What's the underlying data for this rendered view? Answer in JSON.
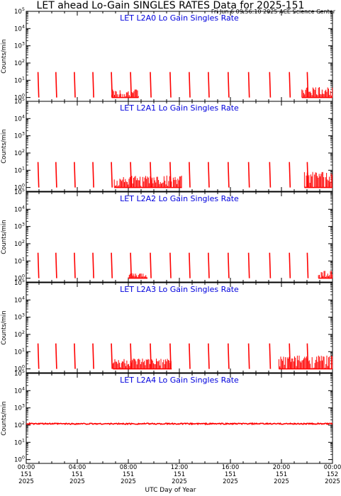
{
  "header": {
    "title": "LET ahead Lo-Gain SINGLES RATES Data for 2025-151",
    "timestamp": "Fri Jun  6 09:56:10 2025 ACE Science Center"
  },
  "colors": {
    "data": "#ff0000",
    "panel_title": "#0000dd",
    "axes": "#000000"
  },
  "chart_data": [
    {
      "type": "line",
      "title": "LET L2A0 Lo Gain Singles Rate",
      "ylabel": "Counts/min",
      "yscale": "log",
      "ylim": [
        0.6,
        100000
      ],
      "ytick_labels": [
        "10^0",
        "10^1",
        "10^2",
        "10^3",
        "10^4",
        "10^5"
      ],
      "spikes": [
        {
          "t": 0.95,
          "v": 30
        },
        {
          "t": 2.35,
          "v": 30
        },
        {
          "t": 3.8,
          "v": 30
        },
        {
          "t": 5.25,
          "v": 30
        },
        {
          "t": 6.7,
          "v": 30
        },
        {
          "t": 8.2,
          "v": 30
        },
        {
          "t": 9.75,
          "v": 30
        },
        {
          "t": 11.3,
          "v": 30
        },
        {
          "t": 12.8,
          "v": 30
        },
        {
          "t": 14.3,
          "v": 30
        },
        {
          "t": 15.85,
          "v": 30
        },
        {
          "t": 17.45,
          "v": 30
        },
        {
          "t": 19.1,
          "v": 30
        },
        {
          "t": 20.65,
          "v": 30
        },
        {
          "t": 22.05,
          "v": 30
        }
      ],
      "noise_segments": [
        {
          "t0": 6.7,
          "t1": 8.8,
          "vmax": 3
        },
        {
          "t0": 21.6,
          "t1": 24.0,
          "vmax": 4
        }
      ]
    },
    {
      "type": "line",
      "title": "LET L2A1 Lo Gain Singles Rate",
      "ylabel": "Counts/min",
      "yscale": "log",
      "ylim": [
        0.6,
        100000
      ],
      "ytick_labels": [
        "10^0",
        "10^1",
        "10^2",
        "10^3",
        "10^4",
        "10^5"
      ],
      "spikes": [
        {
          "t": 0.95,
          "v": 30
        },
        {
          "t": 2.35,
          "v": 30
        },
        {
          "t": 3.8,
          "v": 30
        },
        {
          "t": 5.25,
          "v": 30
        },
        {
          "t": 6.7,
          "v": 30
        },
        {
          "t": 8.2,
          "v": 30
        },
        {
          "t": 9.75,
          "v": 30
        },
        {
          "t": 11.3,
          "v": 30
        },
        {
          "t": 12.8,
          "v": 30
        },
        {
          "t": 14.3,
          "v": 30
        },
        {
          "t": 15.85,
          "v": 30
        },
        {
          "t": 17.45,
          "v": 30
        },
        {
          "t": 19.1,
          "v": 30
        },
        {
          "t": 20.65,
          "v": 30
        },
        {
          "t": 22.05,
          "v": 30
        }
      ],
      "noise_segments": [
        {
          "t0": 6.9,
          "t1": 12.2,
          "vmax": 5
        },
        {
          "t0": 21.8,
          "t1": 24.0,
          "vmax": 8
        }
      ]
    },
    {
      "type": "line",
      "title": "LET L2A2 Lo Gain Singles Rate",
      "ylabel": "Counts/min",
      "yscale": "log",
      "ylim": [
        0.6,
        100000
      ],
      "ytick_labels": [
        "10^0",
        "10^1",
        "10^2",
        "10^3",
        "10^4",
        "10^5"
      ],
      "spikes": [
        {
          "t": 0.95,
          "v": 30
        },
        {
          "t": 2.35,
          "v": 30
        },
        {
          "t": 3.8,
          "v": 30
        },
        {
          "t": 5.25,
          "v": 30
        },
        {
          "t": 6.7,
          "v": 30
        },
        {
          "t": 8.2,
          "v": 30
        },
        {
          "t": 9.75,
          "v": 30
        },
        {
          "t": 11.3,
          "v": 30
        },
        {
          "t": 12.8,
          "v": 30
        },
        {
          "t": 14.3,
          "v": 30
        },
        {
          "t": 15.85,
          "v": 30
        },
        {
          "t": 17.45,
          "v": 30
        },
        {
          "t": 19.1,
          "v": 30
        },
        {
          "t": 20.65,
          "v": 30
        },
        {
          "t": 22.05,
          "v": 30
        }
      ],
      "noise_segments": [
        {
          "t0": 8.0,
          "t1": 9.5,
          "vmax": 2
        },
        {
          "t0": 22.9,
          "t1": 24.0,
          "vmax": 3
        }
      ]
    },
    {
      "type": "line",
      "title": "LET L2A3 Lo Gain Singles Rate",
      "ylabel": "Counts/min",
      "yscale": "log",
      "ylim": [
        0.6,
        100000
      ],
      "ytick_labels": [
        "10^0",
        "10^1",
        "10^2",
        "10^3",
        "10^4",
        "10^5"
      ],
      "spikes": [
        {
          "t": 0.95,
          "v": 30
        },
        {
          "t": 2.35,
          "v": 30
        },
        {
          "t": 3.8,
          "v": 30
        },
        {
          "t": 5.25,
          "v": 30
        },
        {
          "t": 6.7,
          "v": 30
        },
        {
          "t": 8.2,
          "v": 30
        },
        {
          "t": 9.75,
          "v": 30
        },
        {
          "t": 11.3,
          "v": 30
        },
        {
          "t": 12.8,
          "v": 30
        },
        {
          "t": 14.3,
          "v": 30
        },
        {
          "t": 15.85,
          "v": 30
        },
        {
          "t": 17.45,
          "v": 30
        },
        {
          "t": 19.1,
          "v": 30
        },
        {
          "t": 20.65,
          "v": 30
        },
        {
          "t": 22.05,
          "v": 30
        }
      ],
      "noise_segments": [
        {
          "t0": 6.8,
          "t1": 11.4,
          "vmax": 4
        },
        {
          "t0": 19.8,
          "t1": 24.0,
          "vmax": 6
        }
      ]
    },
    {
      "type": "line",
      "title": "LET L2A4 Lo Gain Singles Rate",
      "ylabel": "Counts/min",
      "yscale": "log",
      "ylim": [
        0.6,
        100000
      ],
      "ytick_labels": [
        "10^0",
        "10^1",
        "10^2",
        "10^3",
        "10^4",
        "10^5"
      ],
      "baseline": 120
    }
  ],
  "xaxis": {
    "title": "UTC Day of Year",
    "range_hours": [
      0,
      24
    ],
    "ticks": [
      {
        "h": 0,
        "time": "00:00",
        "doy": "151",
        "year": "2025"
      },
      {
        "h": 4,
        "time": "04:00",
        "doy": "151",
        "year": "2025"
      },
      {
        "h": 8,
        "time": "08:00",
        "doy": "151",
        "year": "2025"
      },
      {
        "h": 12,
        "time": "12:00",
        "doy": "151",
        "year": "2025"
      },
      {
        "h": 16,
        "time": "16:00",
        "doy": "151",
        "year": "2025"
      },
      {
        "h": 20,
        "time": "20:00",
        "doy": "151",
        "year": "2025"
      },
      {
        "h": 24,
        "time": "00:00",
        "doy": "152",
        "year": "2025"
      }
    ]
  }
}
